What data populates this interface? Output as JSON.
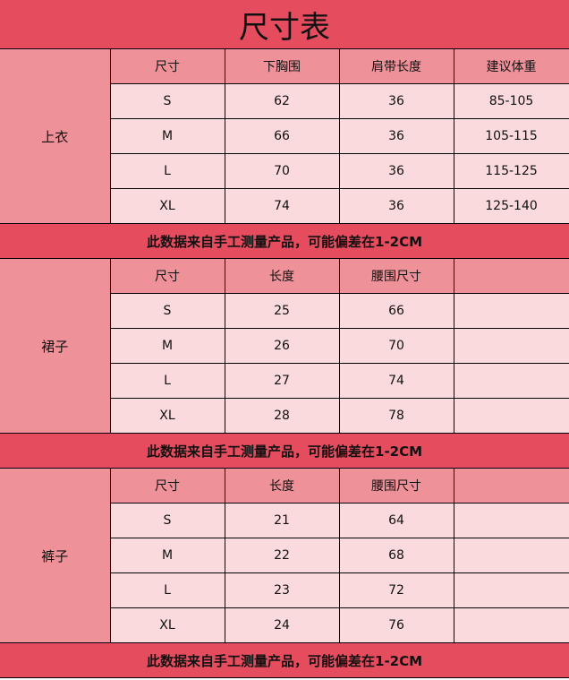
{
  "title": "尺寸表",
  "colors": {
    "title_bg": "#e54d5f",
    "header_bg": "#ef9199",
    "cell_bg": "#fadadd"
  },
  "sections": [
    {
      "category": "上衣",
      "headers": [
        "尺寸",
        "下胸围",
        "肩带长度",
        "建议体重"
      ],
      "rows": [
        [
          "S",
          "62",
          "36",
          "85-105"
        ],
        [
          "M",
          "66",
          "36",
          "105-115"
        ],
        [
          "L",
          "70",
          "36",
          "115-125"
        ],
        [
          "XL",
          "74",
          "36",
          "125-140"
        ]
      ],
      "note": "此数据来自手工测量产品，可能偏差在1-2CM"
    },
    {
      "category": "裙子",
      "headers": [
        "尺寸",
        "长度",
        "腰围尺寸",
        ""
      ],
      "rows": [
        [
          "S",
          "25",
          "66",
          ""
        ],
        [
          "M",
          "26",
          "70",
          ""
        ],
        [
          "L",
          "27",
          "74",
          ""
        ],
        [
          "XL",
          "28",
          "78",
          ""
        ]
      ],
      "note": "此数据来自手工测量产品，可能偏差在1-2CM"
    },
    {
      "category": "裤子",
      "headers": [
        "尺寸",
        "长度",
        "腰围尺寸",
        ""
      ],
      "rows": [
        [
          "S",
          "21",
          "64",
          ""
        ],
        [
          "M",
          "22",
          "68",
          ""
        ],
        [
          "L",
          "23",
          "72",
          ""
        ],
        [
          "XL",
          "24",
          "76",
          ""
        ]
      ],
      "note": "此数据来自手工测量产品，可能偏差在1-2CM"
    }
  ]
}
